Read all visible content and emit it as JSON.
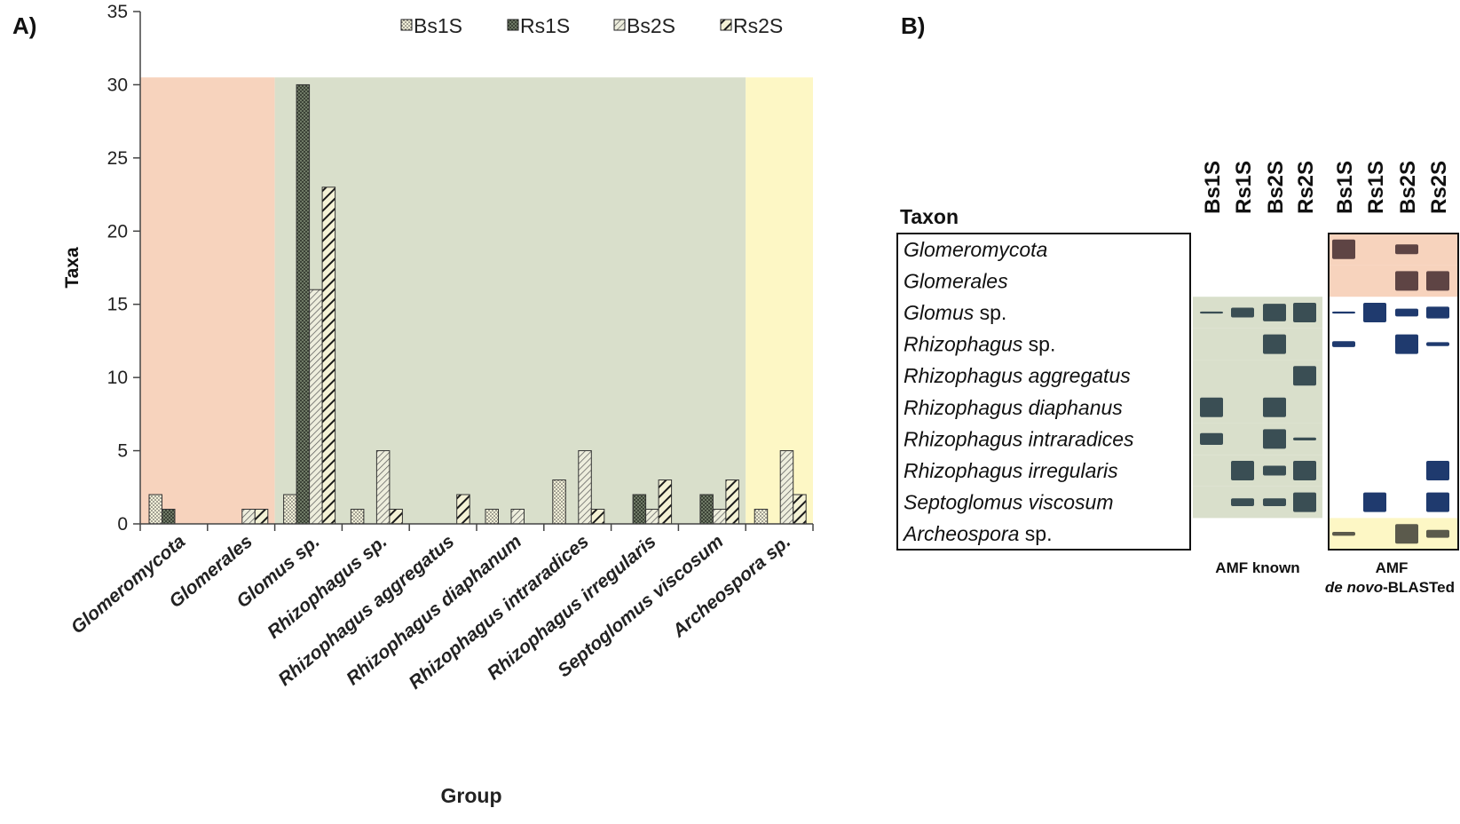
{
  "panel_a_label": "A)",
  "panel_b_label": "B)",
  "chart_data": {
    "type": "bar",
    "title": "",
    "xlabel": "Group",
    "ylabel": "Taxa",
    "ylim": [
      0,
      35
    ],
    "yticks": [
      0,
      5,
      10,
      15,
      20,
      25,
      30,
      35
    ],
    "legend_position": "top",
    "categories": [
      "Glomeromycota",
      "Glomerales",
      "Glomus sp.",
      "Rhizophagus sp.",
      "Rhizophagus aggregatus",
      "Rhizophagus diaphanum",
      "Rhizophagus intraradices",
      "Rhizophagus irregularis",
      "Septoglomus viscosum",
      "Archeospora sp."
    ],
    "series": [
      {
        "name": "Bs1S",
        "pattern": "dots",
        "values": [
          2,
          0,
          2,
          1,
          0,
          1,
          3,
          0,
          0,
          1
        ]
      },
      {
        "name": "Rs1S",
        "pattern": "crosshatch",
        "values": [
          1,
          0,
          30,
          0,
          0,
          0,
          0,
          2,
          2,
          0
        ]
      },
      {
        "name": "Bs2S",
        "pattern": "thin-diagonal",
        "values": [
          0,
          1,
          16,
          5,
          0,
          1,
          5,
          1,
          1,
          5
        ]
      },
      {
        "name": "Rs2S",
        "pattern": "thick-diagonal",
        "values": [
          0,
          1,
          23,
          1,
          2,
          0,
          1,
          3,
          3,
          2
        ]
      }
    ],
    "background_regions": [
      {
        "from_category": 0,
        "to_category": 1,
        "color": "#f7d3bd"
      },
      {
        "from_category": 2,
        "to_category": 8,
        "color": "#d9dfcb"
      },
      {
        "from_category": 9,
        "to_category": 9,
        "color": "#fdf7c5"
      }
    ],
    "region_top_value": 30.5
  },
  "heatmap": {
    "header_taxon": "Taxon",
    "columns": [
      "Bs1S",
      "Rs1S",
      "Bs2S",
      "Rs2S",
      "Bs1S",
      "Rs1S",
      "Bs2S",
      "Rs2S"
    ],
    "group_labels": {
      "known": "AMF known",
      "blasted_line1": "AMF",
      "blasted_prefix": "de novo",
      "blasted_suffix": "-BLASTed"
    },
    "rows": [
      {
        "genus": "Glomeromycota",
        "suffix": "",
        "known_bg": "none",
        "blast_bg": "#f7d3bd"
      },
      {
        "genus": "Glomerales",
        "suffix": "",
        "known_bg": "none",
        "blast_bg": "#f7d3bd"
      },
      {
        "genus": "Glomus",
        "suffix": " sp.",
        "known_bg": "#d9dfcb",
        "blast_bg": "none"
      },
      {
        "genus": "Rhizophagus",
        "suffix": " sp.",
        "known_bg": "#d9dfcb",
        "blast_bg": "none"
      },
      {
        "genus": "Rhizophagus aggregatus",
        "suffix": "",
        "known_bg": "#d9dfcb",
        "blast_bg": "none"
      },
      {
        "genus": "Rhizophagus diaphanus",
        "suffix": "",
        "known_bg": "#d9dfcb",
        "blast_bg": "none"
      },
      {
        "genus": "Rhizophagus intraradices",
        "suffix": "",
        "known_bg": "#d9dfcb",
        "blast_bg": "none"
      },
      {
        "genus": "Rhizophagus irregularis",
        "suffix": "",
        "known_bg": "#d9dfcb",
        "blast_bg": "none"
      },
      {
        "genus": "Septoglomus viscosum",
        "suffix": "",
        "known_bg": "#d9dfcb",
        "blast_bg": "none"
      },
      {
        "genus": "Archeospora",
        "suffix": " sp.",
        "known_bg": "none",
        "blast_bg": "#fdf7c5"
      }
    ],
    "intensity": [
      [
        0,
        0,
        0,
        0,
        1.0,
        0,
        0.5,
        0
      ],
      [
        0,
        0,
        0,
        0,
        0,
        0,
        1.0,
        1.0
      ],
      [
        0.1,
        0.5,
        0.9,
        1.0,
        0.1,
        1.0,
        0.4,
        0.6
      ],
      [
        0,
        0,
        1.0,
        0,
        0.3,
        0,
        1.0,
        0.2
      ],
      [
        0,
        0,
        0,
        1.0,
        0,
        0,
        0,
        0
      ],
      [
        1.0,
        0,
        1.0,
        0,
        0,
        0,
        0,
        0
      ],
      [
        0.6,
        0,
        1.0,
        0.15,
        0,
        0,
        0,
        0
      ],
      [
        0,
        1.0,
        0.5,
        1.0,
        0,
        0,
        0,
        1.0
      ],
      [
        0,
        0.4,
        0.4,
        1.0,
        0,
        1.0,
        0,
        1.0
      ],
      [
        0,
        0,
        0,
        0,
        0.2,
        0,
        1.0,
        0.4
      ]
    ],
    "colors": {
      "known_cell": "#3a4e54",
      "blast_top_cell": "#5e4444",
      "blast_mid_cell": "#1f3a6e",
      "blast_bottom_cell": "#5b5a4c"
    }
  }
}
